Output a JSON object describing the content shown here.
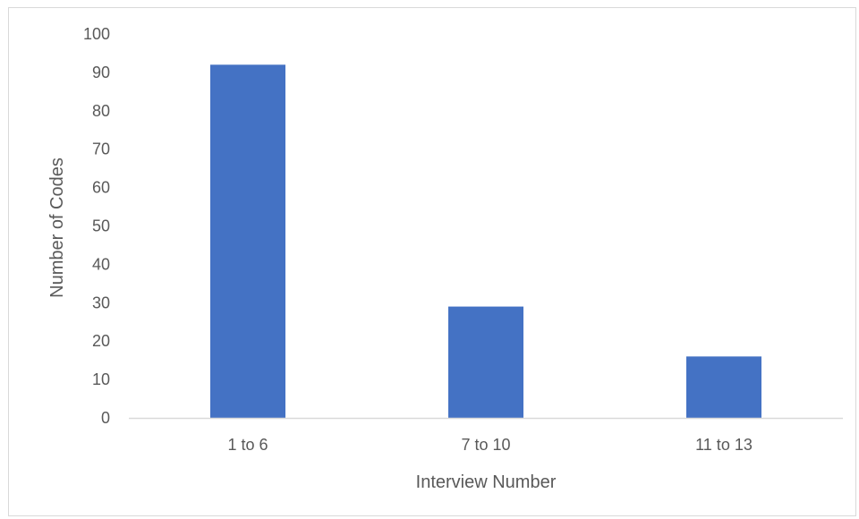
{
  "chart_data": {
    "type": "bar",
    "categories": [
      "1 to 6",
      "7 to 10",
      "11 to 13"
    ],
    "values": [
      92,
      29,
      16
    ],
    "xlabel": "Interview Number",
    "ylabel": "Number of Codes",
    "ylim": [
      0,
      100
    ],
    "yticks": [
      0,
      10,
      20,
      30,
      40,
      50,
      60,
      70,
      80,
      90,
      100
    ],
    "grid": false,
    "legend": "none",
    "colors": {
      "bar": "#4472c4",
      "axis": "#d9d9d9",
      "text": "#595959"
    }
  }
}
